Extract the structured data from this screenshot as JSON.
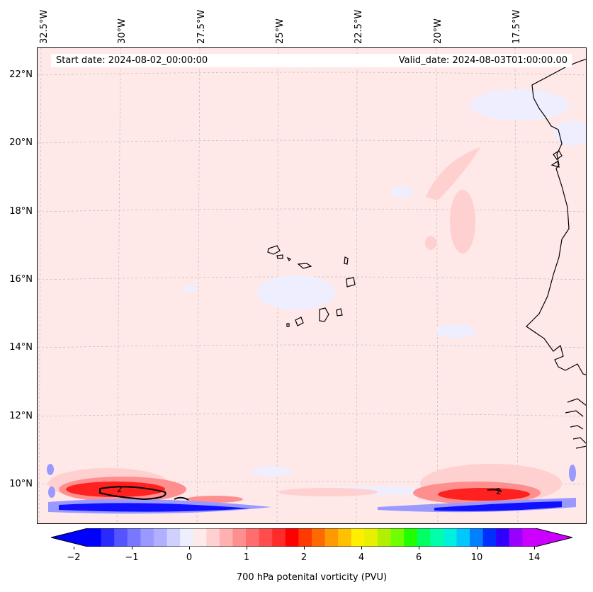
{
  "info": {
    "start_date": "Start date: 2024-08-02_00:00:00",
    "valid_date": "Valid_date: 2024-08-03T01:00:00.00"
  },
  "axes": {
    "longitude_labels": [
      "32.5°W",
      "30°W",
      "27.5°W",
      "25°W",
      "22.5°W",
      "20°W",
      "17.5°W"
    ],
    "latitude_labels": [
      "22°N",
      "20°N",
      "18°N",
      "16°N",
      "14°N",
      "12°N",
      "10°N"
    ]
  },
  "contours": {
    "label_value": "2"
  },
  "colorbar": {
    "label": "700 hPa potenital vorticity (PVU)",
    "tick_labels": [
      "−2",
      "−1",
      "0",
      "1",
      "2",
      "4",
      "6",
      "10",
      "14"
    ],
    "colors": [
      "#0000ff",
      "#2a2aff",
      "#5555ff",
      "#7777ff",
      "#9999ff",
      "#b0b0ff",
      "#d0d0ff",
      "#eeeeff",
      "#ffeaea",
      "#ffd0d0",
      "#ffb0b0",
      "#ff8f8f",
      "#ff6e6e",
      "#ff4c4c",
      "#ff2a2a",
      "#ff0000",
      "#ff3a00",
      "#ff6a00",
      "#ff9900",
      "#ffc000",
      "#ffee00",
      "#e6f000",
      "#b0f000",
      "#70ff00",
      "#20ff00",
      "#00ff60",
      "#00ffaa",
      "#00f0e0",
      "#00c8ff",
      "#0080ff",
      "#0030ff",
      "#3000ff",
      "#9900ff",
      "#cc00ff"
    ],
    "extend_colors": {
      "low": "#0000ff",
      "high": "#cc00ff"
    }
  },
  "map_colors": {
    "background": "#ffe8e8",
    "light_red": "#ffd0d0",
    "mid_red": "#ff8f8f",
    "strong_red": "#ff2020",
    "light_blue": "#eeeeff",
    "mid_blue": "#9999ff",
    "strong_blue": "#1010ff",
    "coast": "#000000"
  }
}
